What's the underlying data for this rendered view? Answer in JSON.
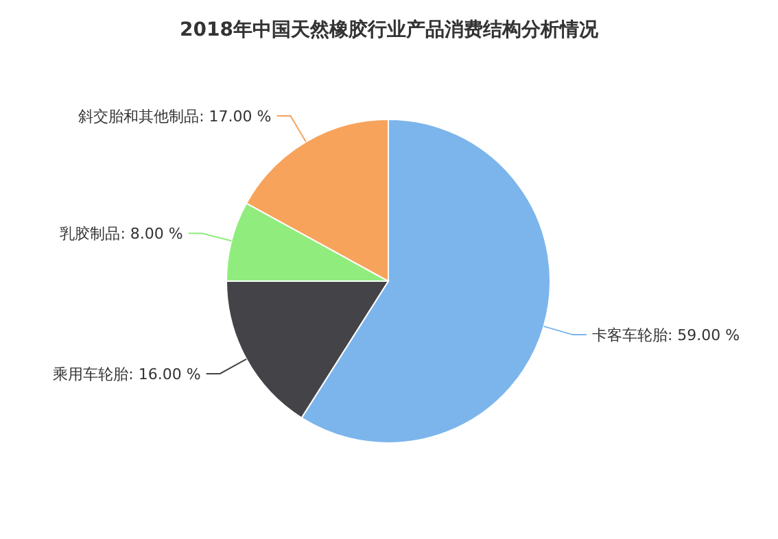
{
  "chart_data": {
    "type": "pie",
    "title": "2018年中国天然橡胶行业产品消费结构分析情况",
    "categories": [
      "卡客车轮胎",
      "乘用车轮胎",
      "乳胶制品",
      "斜交胎和其他制品"
    ],
    "values": [
      59,
      16,
      8,
      17
    ],
    "value_labels": [
      "59.00 %",
      "16.00 %",
      "8.00 %",
      "17.00 %"
    ],
    "colors": [
      "#7cb5ec",
      "#434348",
      "#90ed7d",
      "#f7a35c"
    ],
    "legend": false
  }
}
